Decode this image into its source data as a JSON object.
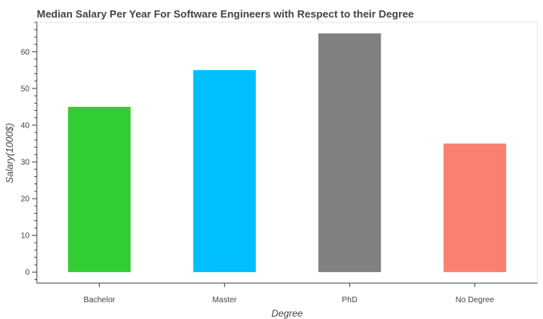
{
  "chart_data": {
    "type": "bar",
    "title": "Median Salary Per Year For Software Engineers with Respect to their Degree",
    "xlabel": "Degree",
    "ylabel": "Salary(1000$)",
    "categories": [
      "Bachelor",
      "Master",
      "PhD",
      "No Degree"
    ],
    "values": [
      45,
      55,
      65,
      35
    ],
    "colors": [
      "#32cd32",
      "#00bfff",
      "#808080",
      "#fa8072"
    ],
    "ylim": [
      -3,
      68
    ],
    "yticks": [
      0,
      10,
      20,
      30,
      40,
      50,
      60
    ],
    "grid": false,
    "legend": "none"
  }
}
